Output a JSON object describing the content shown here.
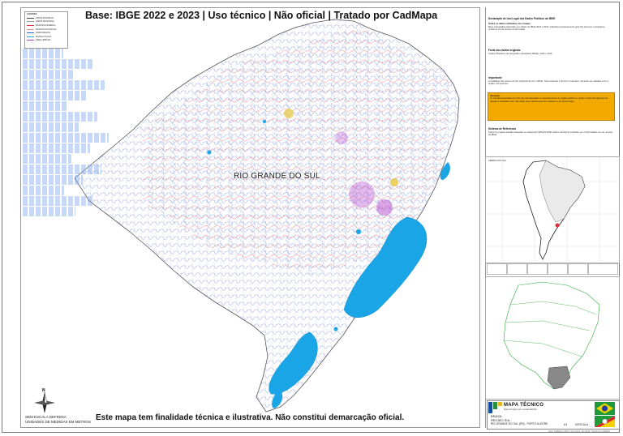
{
  "header": {
    "title": "Base: IBGE 2022 e 2023 | Uso técnico | Não oficial | Tratado por CadMapa"
  },
  "map": {
    "state_label": "RIO GRANDE DO SUL",
    "colors": {
      "lagoon": "#1aa6e6",
      "rivers": "#2f5fd0",
      "roads": "#e0303a",
      "urban": "#b23cc8",
      "land": "#ffffff",
      "border": "#555555"
    },
    "legend_title": "LEGENDA",
    "legend_items": [
      {
        "label": "LIMITE ESTADUAL",
        "color": "#444444"
      },
      {
        "label": "LIMITE MUNICIPAL",
        "color": "#9a9a9a"
      },
      {
        "label": "RODOVIA FEDERAL",
        "color": "#e0303a"
      },
      {
        "label": "RODOVIA ESTADUAL",
        "color": "#f08a8a"
      },
      {
        "label": "HIDROGRAFIA",
        "color": "#2f5fd0"
      },
      {
        "label": "MASSA D'ÁGUA",
        "color": "#1aa6e6"
      },
      {
        "label": "ÁREA URBANA",
        "color": "#b23cc8"
      }
    ]
  },
  "footer": {
    "note": "Este mapa tem finalidade técnica e ilustrativa. Não constitui demarcação oficial.",
    "scale_note": "SEM ESCALA DEFINIDA",
    "units": "UNIDADES DE MEDIDAS EM METROS",
    "north_letter": "N"
  },
  "panel": {
    "section1_title": "Declaração de Uso Legal dos Dados Públicos do IBGE",
    "section1_sub": "Sobre os dados utilizados nos mapas",
    "section1_text": "Base cartográfica elaborada com dados do IBGE 2022 e 2023, utilizados exclusivamente para fins técnicos e ilustrativos, conforme Lei de Acesso à Informação.",
    "section2_title": "Fonte dos dados originais",
    "section2_text": "Instituto Brasileiro de Geografia e Estatística (IBGE), 2022 e 2023.",
    "section3_title": "Importante",
    "section3_text": "A CadMapa não possui vínculo institucional com o IBGE. Todo conteúdo é técnico e ilustrativo, devendo ser validado junto a órgãos competentes.",
    "alert_title": "Atenção",
    "alert_text": "As camadas ilustradas por este site são baseadas em levantamentos de órgãos públicos e podem conter divergências em relação à realidade local. Não utilize este material para fins judiciais ou de demarcação.",
    "section4_title": "Sistema de Referência",
    "section4_text": "Todos os projetos estarão baseados no referencial SIRGAS 2000, Datum Vertical de Imbituba, em conformidade com as normas do IBGE.",
    "globe_label": "AMÉRICA DO SUL"
  },
  "title_block": {
    "title": "MAPA TÉCNICO",
    "subtitle": "Mapa temático sem escala definida",
    "country": "BRASIL",
    "region": "REGIÃO SUL",
    "state": "RIO GRANDE DO SUL (RS) - PORTO ALEGRE",
    "sheet_size": "A3",
    "scale": "S/ESCALA",
    "colophon": "Autor: CadMapa | 2023 | Uso técnico, não oficial. Tratado por CadMapa"
  },
  "ghost_watermark_rows": 16
}
